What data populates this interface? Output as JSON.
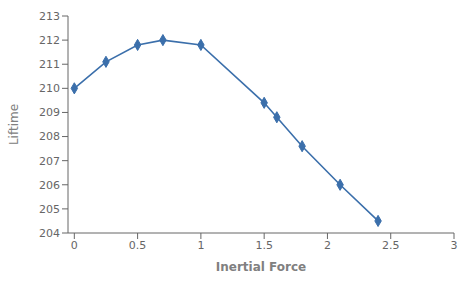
{
  "chart_data": {
    "type": "line",
    "x": [
      0,
      0.25,
      0.5,
      0.7,
      1.0,
      1.5,
      1.6,
      1.8,
      2.1,
      2.4
    ],
    "values": [
      210.0,
      211.1,
      211.8,
      212.0,
      211.8,
      209.4,
      208.8,
      207.6,
      206.0,
      204.5
    ],
    "color": "#3B6FAB",
    "marker": "diamond",
    "xlabel": "Inertial Force",
    "ylabel": "Liftime",
    "xlim": [
      -0.05,
      3.0
    ],
    "ylim": [
      204,
      213
    ],
    "xticks": [
      0,
      0.5,
      1,
      1.5,
      2,
      2.5,
      3
    ],
    "yticks": [
      204,
      205,
      206,
      207,
      208,
      209,
      210,
      211,
      212,
      213
    ],
    "grid": false
  }
}
